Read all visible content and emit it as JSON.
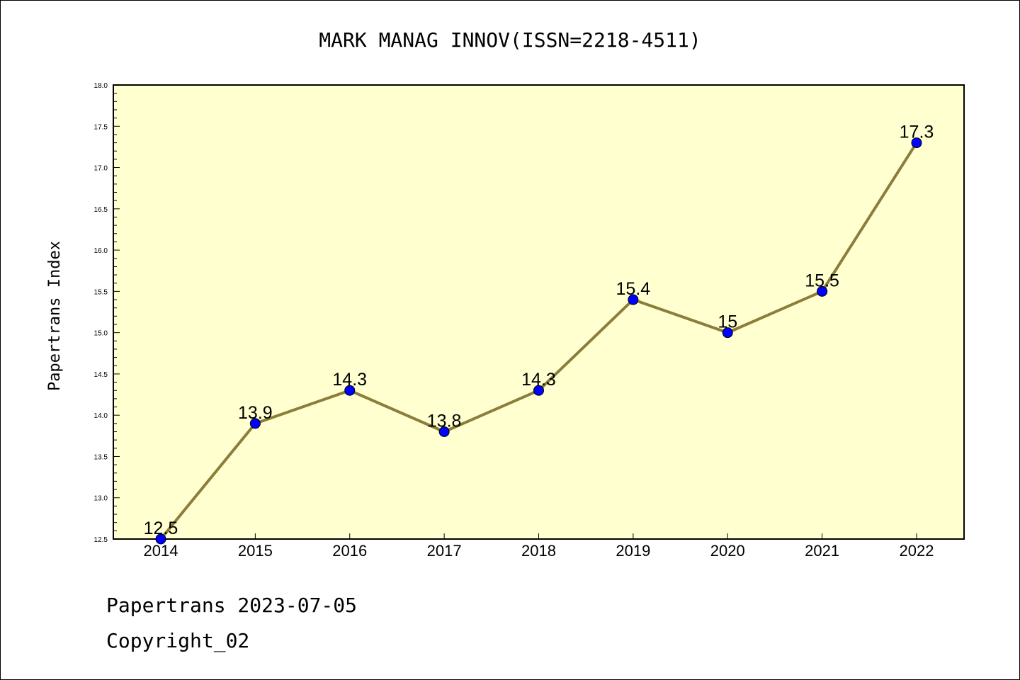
{
  "chart_data": {
    "type": "line",
    "title": "MARK MANAG INNOV(ISSN=2218-4511)",
    "ylabel": "Papertrans Index",
    "xlabel": "",
    "categories": [
      "2014",
      "2015",
      "2016",
      "2017",
      "2018",
      "2019",
      "2020",
      "2021",
      "2022"
    ],
    "values": [
      12.5,
      13.9,
      14.3,
      13.8,
      14.3,
      15.4,
      15.0,
      15.5,
      17.3
    ],
    "data_labels": [
      "12.5",
      "13.9",
      "14.3",
      "13.8",
      "14.3",
      "15.4",
      "15",
      "15.5",
      "17.3"
    ],
    "ylim": [
      12.5,
      18.0
    ],
    "yticks": [
      "12.5",
      "13.0",
      "13.5",
      "14.0",
      "14.5",
      "15.0",
      "15.5",
      "16.0",
      "16.5",
      "17.0",
      "17.5",
      "18.0"
    ],
    "grid": false,
    "legend": "none",
    "colors": {
      "plot_background": "#ffffd0",
      "line": "#8b7d3a",
      "marker": "#0000ff"
    }
  },
  "footer": {
    "line1": "Papertrans 2023-07-05",
    "line2": "Copyright_02"
  }
}
